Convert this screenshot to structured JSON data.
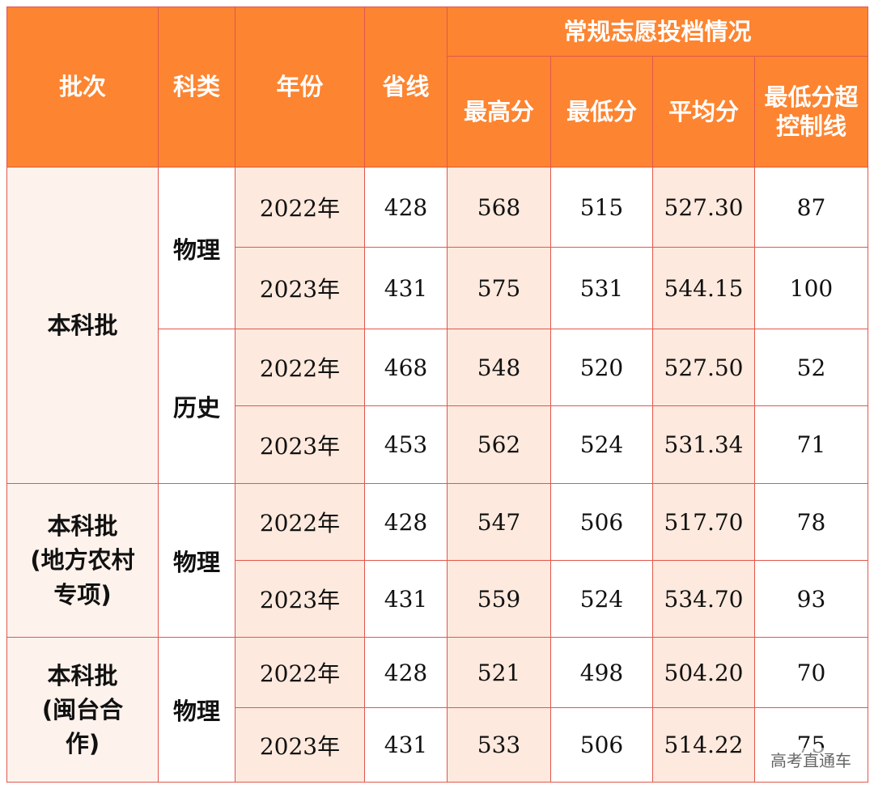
{
  "header": {
    "batch": "批次",
    "subject": "科类",
    "year": "年份",
    "province_line": "省线",
    "group": "常规志愿投档情况",
    "max": "最高分",
    "min": "最低分",
    "avg": "平均分",
    "over_line_1": "最低分超",
    "over_line_2": "控制线"
  },
  "groups": [
    {
      "name_lines": [
        "本科批"
      ]
    },
    {
      "name_lines": [
        "本科批",
        "(地方农村",
        "专项)"
      ]
    },
    {
      "name_lines": [
        "本科批",
        "(闽台合",
        "作)"
      ]
    }
  ],
  "subjects": [
    "物理",
    "历史",
    "物理",
    "物理"
  ],
  "rows": [
    {
      "year": "2022年",
      "line": "428",
      "max": "568",
      "min": "515",
      "avg": "527.30",
      "over": "87"
    },
    {
      "year": "2023年",
      "line": "431",
      "max": "575",
      "min": "531",
      "avg": "544.15",
      "over": "100"
    },
    {
      "year": "2022年",
      "line": "468",
      "max": "548",
      "min": "520",
      "avg": "527.50",
      "over": "52"
    },
    {
      "year": "2023年",
      "line": "453",
      "max": "562",
      "min": "524",
      "avg": "531.34",
      "over": "71"
    },
    {
      "year": "2022年",
      "line": "428",
      "max": "547",
      "min": "506",
      "avg": "517.70",
      "over": "78"
    },
    {
      "year": "2023年",
      "line": "431",
      "max": "559",
      "min": "524",
      "avg": "534.70",
      "over": "93"
    },
    {
      "year": "2022年",
      "line": "428",
      "max": "521",
      "min": "498",
      "avg": "504.20",
      "over": "70"
    },
    {
      "year": "2023年",
      "line": "431",
      "max": "533",
      "min": "506",
      "avg": "514.22",
      "over": "75"
    }
  ],
  "watermark": "高考直通车",
  "colors": {
    "header_bg": "#fd8430",
    "border": "#e2574c",
    "peach": "#fde9dd",
    "group_bg": "#fdf2ec"
  }
}
